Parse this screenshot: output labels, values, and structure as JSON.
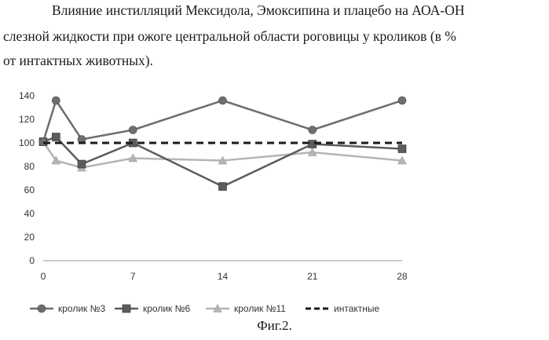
{
  "title": {
    "line1": "Влияние инстилляций Мексидола, Эмоксипина и плацебо на АОА-ОН",
    "line2": "слезной жидкости при ожоге центральной области роговицы у кроликов (в %",
    "line3": "от интактных животных)."
  },
  "caption": "Фиг.2.",
  "chart_data": {
    "type": "line",
    "x": [
      0,
      1,
      3,
      7,
      14,
      21,
      28
    ],
    "xticks": [
      0,
      7,
      14,
      21,
      28
    ],
    "xlim": [
      0,
      28
    ],
    "ylim": [
      0,
      140
    ],
    "yticks": [
      0,
      20,
      40,
      60,
      80,
      100,
      120,
      140
    ],
    "grid": false,
    "legend_position": "bottom",
    "series": [
      {
        "name": "кролик №3",
        "values": [
          101,
          136,
          103,
          111,
          136,
          111,
          136
        ],
        "color": "#6e6e6e",
        "marker": "circle",
        "dash": "solid"
      },
      {
        "name": "кролик №6",
        "values": [
          101,
          105,
          82,
          100,
          63,
          99,
          95
        ],
        "color": "#5c5c5c",
        "marker": "square",
        "dash": "solid"
      },
      {
        "name": "кролик №11",
        "values": [
          101,
          85,
          79,
          87,
          85,
          92,
          85
        ],
        "color": "#b5b5b5",
        "marker": "triangle",
        "dash": "solid"
      },
      {
        "name": "интактные",
        "values": [
          100,
          100,
          100,
          100,
          100,
          100,
          100
        ],
        "color": "#1a1a1a",
        "marker": "none",
        "dash": "dashed"
      }
    ]
  }
}
